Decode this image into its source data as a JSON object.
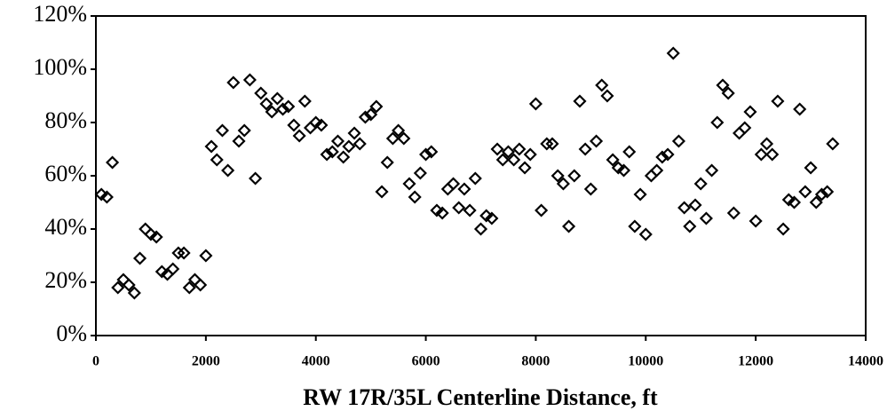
{
  "chart_data": {
    "type": "scatter",
    "x_label": "RW 17R/35L Centerline Distance, ft",
    "x": [
      100,
      200,
      300,
      400,
      500,
      600,
      700,
      800,
      900,
      1000,
      1100,
      1200,
      1300,
      1400,
      1500,
      1600,
      1700,
      1800,
      1900,
      2000,
      2100,
      2200,
      2300,
      2400,
      2500,
      2600,
      2700,
      2800,
      2900,
      3000,
      3100,
      3200,
      3300,
      3400,
      3500,
      3600,
      3700,
      3800,
      3900,
      4000,
      4100,
      4200,
      4300,
      4400,
      4500,
      4600,
      4700,
      4800,
      4900,
      5000,
      5100,
      5200,
      5300,
      5400,
      5500,
      5600,
      5700,
      5800,
      5900,
      6000,
      6100,
      6200,
      6300,
      6400,
      6500,
      6600,
      6700,
      6800,
      6900,
      7000,
      7100,
      7200,
      7300,
      7400,
      7500,
      7600,
      7700,
      7800,
      7900,
      8000,
      8100,
      8200,
      8300,
      8400,
      8500,
      8600,
      8700,
      8800,
      8900,
      9000,
      9100,
      9200,
      9300,
      9400,
      9500,
      9600,
      9700,
      9800,
      9900,
      10000,
      10100,
      10200,
      10300,
      10400,
      10500,
      10600,
      10700,
      10800,
      10900,
      11000,
      11100,
      11200,
      11300,
      11400,
      11500,
      11600,
      11700,
      11800,
      11900,
      12000,
      12100,
      12200,
      12300,
      12400,
      12500,
      12600,
      12700,
      12800,
      12900,
      13000,
      13100,
      13200,
      13300,
      13400
    ],
    "values": [
      53,
      52,
      65,
      18,
      21,
      19,
      16,
      29,
      40,
      38,
      37,
      24,
      23,
      25,
      31,
      31,
      18,
      21,
      19,
      30,
      71,
      66,
      77,
      62,
      95,
      73,
      77,
      96,
      59,
      91,
      87,
      84,
      89,
      85,
      86,
      79,
      75,
      88,
      78,
      80,
      79,
      68,
      69,
      73,
      67,
      71,
      76,
      72,
      82,
      83,
      86,
      54,
      65,
      74,
      77,
      74,
      57,
      52,
      61,
      68,
      69,
      47,
      46,
      55,
      57,
      48,
      55,
      47,
      59,
      40,
      45,
      44,
      70,
      66,
      69,
      66,
      70,
      63,
      68,
      87,
      47,
      72,
      72,
      60,
      57,
      41,
      60,
      88,
      70,
      55,
      73,
      94,
      90,
      66,
      63,
      62,
      69,
      41,
      53,
      38,
      60,
      62,
      67,
      68,
      106,
      73,
      48,
      41,
      49,
      57,
      44,
      62,
      80,
      94,
      91,
      46,
      76,
      78,
      84,
      43,
      68,
      72,
      68,
      88,
      40,
      51,
      50,
      85,
      54,
      63,
      50,
      53,
      54,
      72
    ],
    "color": "#000000",
    "xlim": [
      0,
      14000
    ],
    "xticks": [
      0,
      2000,
      4000,
      6000,
      8000,
      10000,
      12000,
      14000
    ],
    "ylim": [
      0,
      120
    ],
    "yticks": [
      {
        "value": 0,
        "label": "0%"
      },
      {
        "value": 20,
        "label": "20%"
      },
      {
        "value": 40,
        "label": "40%"
      },
      {
        "value": 60,
        "label": "60%"
      },
      {
        "value": 80,
        "label": "80%"
      },
      {
        "value": 100,
        "label": "100%"
      },
      {
        "value": 120,
        "label": "120%"
      }
    ]
  }
}
